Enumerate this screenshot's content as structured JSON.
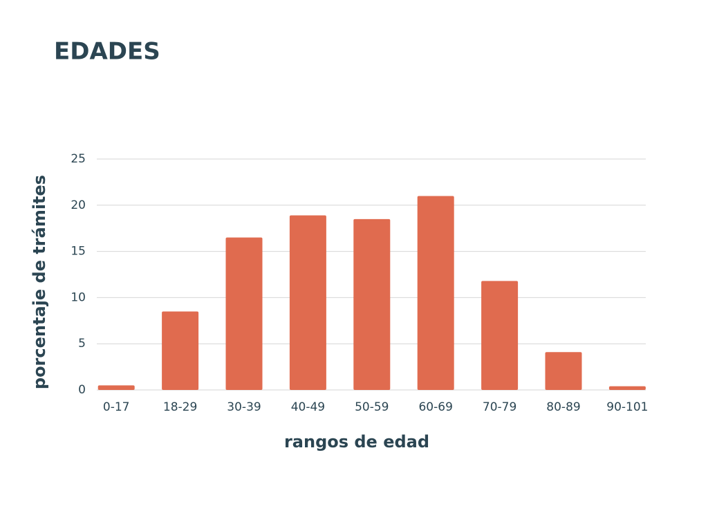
{
  "chart_data": {
    "type": "bar",
    "title": "EDADES",
    "x_label": "rangos de edad",
    "y_label": "porcentaje de trámites",
    "categories": [
      "0-17",
      "18-29",
      "30-39",
      "40-49",
      "50-59",
      "60-69",
      "70-79",
      "80-89",
      "90-101"
    ],
    "values": [
      0.5,
      8.5,
      16.5,
      18.9,
      18.5,
      21.0,
      11.8,
      4.1,
      0.4
    ],
    "color": "#e06b4f",
    "ylim": [
      0,
      25
    ],
    "yticks": [
      0,
      5,
      10,
      15,
      20,
      25
    ],
    "grid": true
  }
}
